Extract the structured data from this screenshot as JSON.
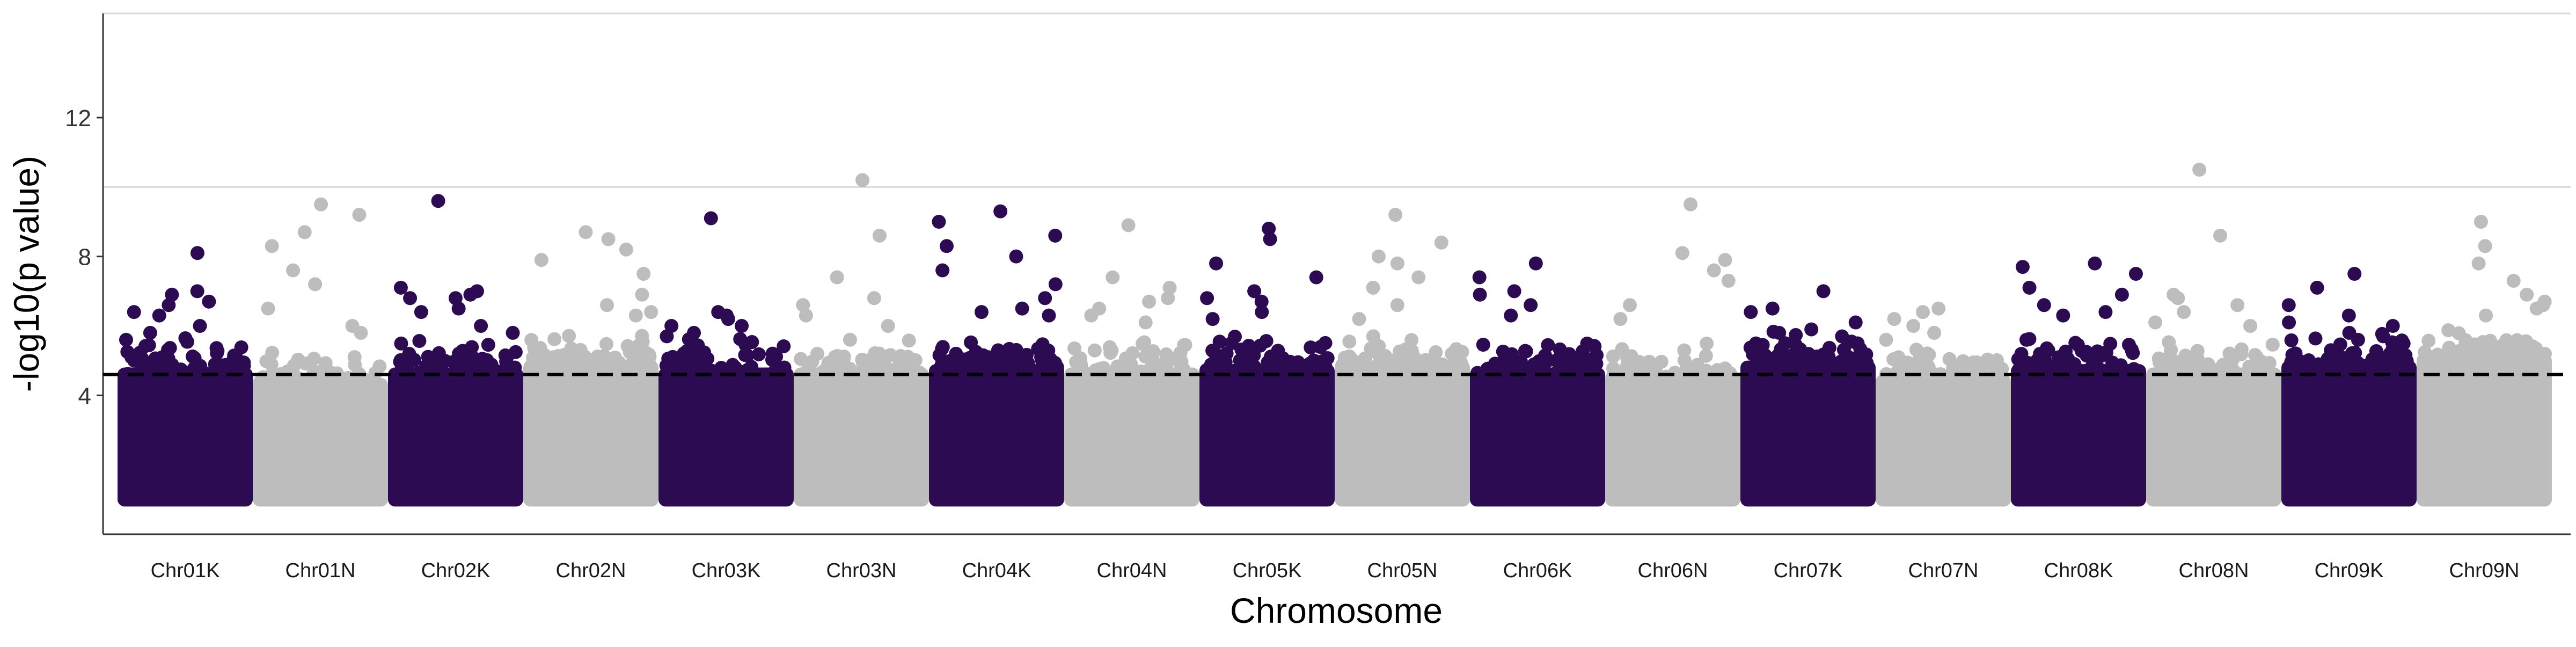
{
  "chart_data": {
    "type": "scatter",
    "title": "",
    "xlabel": "Chromosome",
    "ylabel": "-log10(p value)",
    "ylim": [
      0,
      15
    ],
    "yticks": [
      4,
      8,
      12
    ],
    "grid": "horizontal lines at 10 and 15",
    "categories": [
      "Chr01K",
      "Chr01N",
      "Chr02K",
      "Chr02N",
      "Chr03K",
      "Chr03N",
      "Chr04K",
      "Chr04N",
      "Chr05K",
      "Chr05N",
      "Chr06K",
      "Chr06N",
      "Chr07K",
      "Chr07N",
      "Chr08K",
      "Chr08N",
      "Chr09K",
      "Chr09N"
    ],
    "colors": [
      "#2d0b52",
      "#bdbdbd"
    ],
    "threshold": 4.6,
    "threshold_style": "dashed black",
    "band_floor": 1.0,
    "dense_top": [
      4.6,
      4.3,
      4.6,
      4.8,
      4.6,
      4.6,
      4.7,
      4.6,
      4.7,
      4.8,
      4.6,
      4.5,
      4.8,
      4.4,
      4.7,
      4.6,
      4.8,
      5.0
    ],
    "peak_values": [
      8.1,
      9.5,
      9.6,
      8.7,
      9.1,
      10.2,
      9.3,
      8.9,
      8.8,
      9.2,
      7.8,
      9.5,
      7.0,
      6.5,
      7.8,
      10.5,
      7.5,
      9.0
    ],
    "notable_points": [
      {
        "chromosome": "Chr01K",
        "values": [
          8.1,
          7.0,
          6.9,
          6.7,
          6.6,
          6.4,
          6.3,
          6.0,
          5.8,
          5.6
        ]
      },
      {
        "chromosome": "Chr01N",
        "values": [
          9.5,
          9.2,
          8.7,
          8.3,
          7.6,
          7.2,
          6.5,
          6.0,
          5.8
        ]
      },
      {
        "chromosome": "Chr02K",
        "values": [
          9.6,
          7.1,
          7.0,
          6.9,
          6.8,
          6.8,
          6.5,
          6.4,
          6.0,
          5.8
        ]
      },
      {
        "chromosome": "Chr02N",
        "values": [
          8.7,
          8.5,
          8.2,
          7.9,
          7.5,
          6.9,
          6.6,
          6.4,
          6.3
        ]
      },
      {
        "chromosome": "Chr03K",
        "values": [
          9.1,
          6.4,
          6.3,
          6.2,
          6.0,
          6.0,
          5.8,
          5.7
        ]
      },
      {
        "chromosome": "Chr03N",
        "values": [
          10.2,
          8.6,
          7.4,
          6.8,
          6.6,
          6.3,
          6.0
        ]
      },
      {
        "chromosome": "Chr04K",
        "values": [
          9.3,
          9.0,
          8.6,
          8.3,
          8.0,
          7.6,
          7.2,
          6.8,
          6.5,
          6.4,
          6.3
        ]
      },
      {
        "chromosome": "Chr04N",
        "values": [
          8.9,
          7.4,
          7.1,
          6.8,
          6.7,
          6.5,
          6.3,
          6.1
        ]
      },
      {
        "chromosome": "Chr05K",
        "values": [
          8.8,
          8.5,
          7.8,
          7.4,
          7.0,
          6.8,
          6.7,
          6.4,
          6.2
        ]
      },
      {
        "chromosome": "Chr05N",
        "values": [
          9.2,
          8.4,
          8.0,
          7.8,
          7.4,
          7.1,
          6.6,
          6.2
        ]
      },
      {
        "chromosome": "Chr06K",
        "values": [
          7.8,
          7.4,
          7.0,
          6.9,
          6.6,
          6.3
        ]
      },
      {
        "chromosome": "Chr06N",
        "values": [
          9.5,
          8.1,
          7.9,
          7.6,
          7.3,
          6.6,
          6.2
        ]
      },
      {
        "chromosome": "Chr07K",
        "values": [
          7.0,
          6.5,
          6.4,
          6.1,
          5.9,
          5.8
        ]
      },
      {
        "chromosome": "Chr07N",
        "values": [
          6.5,
          6.4,
          6.2,
          6.0,
          5.8,
          5.6
        ]
      },
      {
        "chromosome": "Chr08K",
        "values": [
          7.8,
          7.7,
          7.5,
          7.1,
          6.9,
          6.6,
          6.4,
          6.3
        ]
      },
      {
        "chromosome": "Chr08N",
        "values": [
          10.5,
          8.6,
          6.9,
          6.8,
          6.6,
          6.4,
          6.1,
          6.0
        ]
      },
      {
        "chromosome": "Chr09K",
        "values": [
          7.5,
          7.1,
          6.6,
          6.3,
          6.1,
          6.0,
          5.8
        ]
      },
      {
        "chromosome": "Chr09N",
        "values": [
          9.0,
          8.3,
          7.8,
          7.3,
          6.9,
          6.7,
          6.6,
          6.5,
          6.3
        ]
      }
    ]
  }
}
